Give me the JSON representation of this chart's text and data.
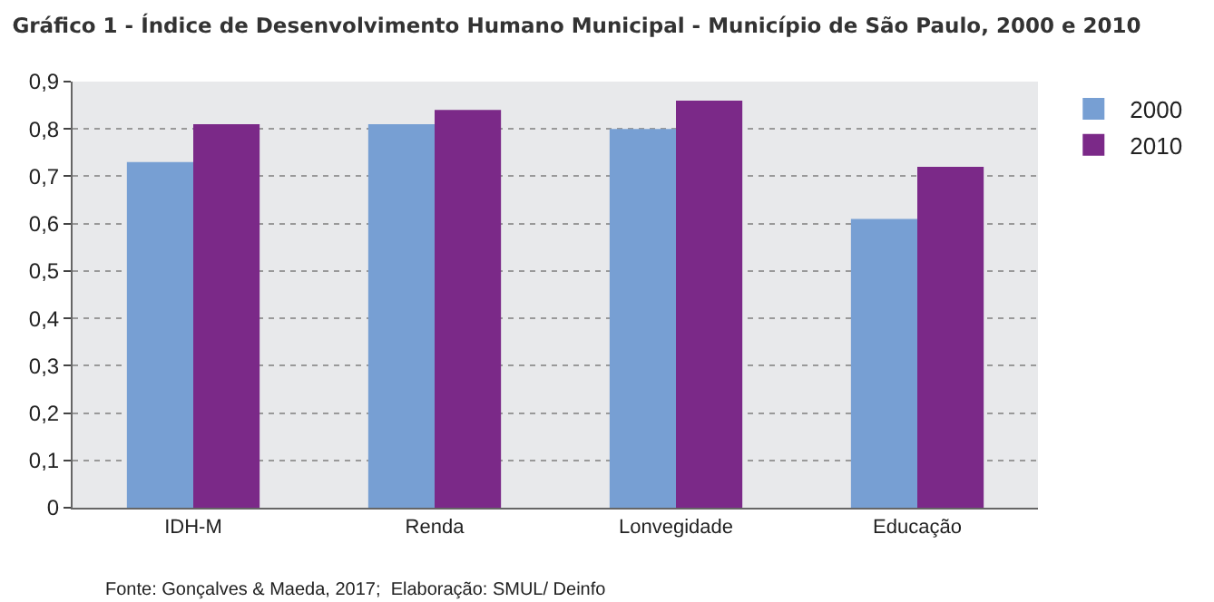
{
  "chart_data": {
    "type": "bar",
    "title": "Gráfico 1 - Índice de Desenvolvimento Humano Municipal - Município de São Paulo, 2000 e 2010",
    "categories": [
      "IDH-M",
      "Renda",
      "Lonvegidade",
      "Educação"
    ],
    "series": [
      {
        "name": "2000",
        "color": "#779fd3",
        "values": [
          0.73,
          0.81,
          0.8,
          0.61
        ]
      },
      {
        "name": "2010",
        "color": "#7b2988",
        "values": [
          0.81,
          0.84,
          0.86,
          0.72
        ]
      }
    ],
    "ylim": [
      0,
      0.9
    ],
    "yticks": [
      {
        "value": 0,
        "label": "0"
      },
      {
        "value": 0.1,
        "label": "0,1"
      },
      {
        "value": 0.2,
        "label": "0,2"
      },
      {
        "value": 0.3,
        "label": "0,3"
      },
      {
        "value": 0.4,
        "label": "0,4"
      },
      {
        "value": 0.5,
        "label": "0,5"
      },
      {
        "value": 0.6,
        "label": "0,6"
      },
      {
        "value": 0.7,
        "label": "0,7"
      },
      {
        "value": 0.8,
        "label": "0,8"
      },
      {
        "value": 0.9,
        "label": "0,9"
      }
    ],
    "grid": "y",
    "legend": "top right",
    "annotations": [
      "Fonte: Gonçalves & Maeda, 2017;  Elaboração: SMUL/ Deinfo"
    ]
  }
}
